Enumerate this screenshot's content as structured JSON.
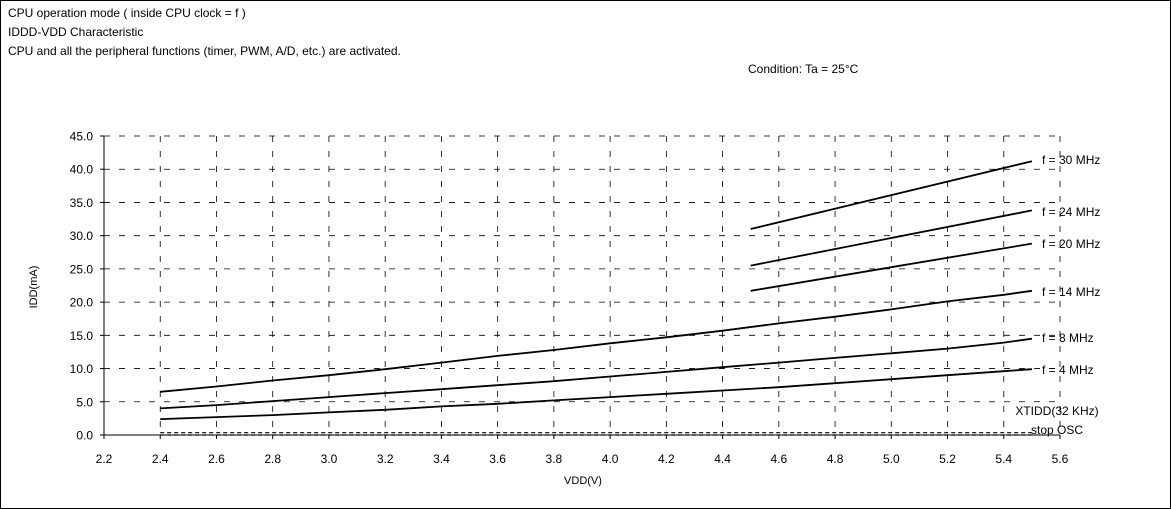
{
  "header": {
    "line1": "CPU operation mode ( inside CPU clock = f )",
    "line2": "IDDD-VDD Characteristic",
    "line3": "CPU and all the peripheral functions (timer, PWM, A/D, etc.) are activated.",
    "condition": "Condition: Ta = 25°C"
  },
  "chart_data": {
    "type": "line",
    "title": "",
    "xlabel": "VDD(V)",
    "ylabel": "IDD(mA)",
    "xlim": [
      2.2,
      5.6
    ],
    "ylim": [
      0,
      45
    ],
    "xticks": [
      "2.2",
      "2.4",
      "2.6",
      "2.8",
      "3.0",
      "3.2",
      "3.4",
      "3.6",
      "3.8",
      "4.0",
      "4.2",
      "4.4",
      "4.6",
      "4.8",
      "5.0",
      "5.2",
      "5.4",
      "5.6"
    ],
    "yticks": [
      "0.0",
      "5.0",
      "10.0",
      "15.0",
      "20.0",
      "25.0",
      "30.0",
      "35.0",
      "40.0",
      "45.0"
    ],
    "grid": true,
    "legend": "inline-right",
    "series": [
      {
        "name": "f = 30 MHz",
        "x": [
          4.5,
          5.5
        ],
        "y": [
          31.0,
          41.2
        ]
      },
      {
        "name": "f = 24 MHz",
        "x": [
          4.5,
          5.5
        ],
        "y": [
          25.5,
          33.8
        ]
      },
      {
        "name": "f = 20 MHz",
        "x": [
          4.5,
          5.5
        ],
        "y": [
          21.7,
          28.8
        ]
      },
      {
        "name": "f = 14 MHz",
        "x": [
          2.4,
          2.6,
          2.8,
          3.0,
          3.2,
          3.4,
          3.6,
          3.8,
          4.0,
          4.2,
          4.4,
          4.6,
          4.8,
          5.0,
          5.2,
          5.4,
          5.5
        ],
        "y": [
          6.5,
          7.3,
          8.2,
          9.0,
          9.9,
          10.9,
          11.9,
          12.8,
          13.8,
          14.7,
          15.7,
          16.8,
          17.8,
          18.9,
          20.1,
          21.1,
          21.7
        ]
      },
      {
        "name": "f = 8 MHz",
        "x": [
          2.4,
          2.6,
          2.8,
          3.0,
          3.2,
          3.4,
          3.6,
          3.8,
          4.0,
          4.2,
          4.4,
          4.6,
          4.8,
          5.0,
          5.2,
          5.4,
          5.5
        ],
        "y": [
          4.0,
          4.5,
          5.1,
          5.7,
          6.3,
          6.9,
          7.5,
          8.1,
          8.8,
          9.5,
          10.2,
          10.9,
          11.6,
          12.3,
          13.0,
          13.9,
          14.5
        ]
      },
      {
        "name": "f = 4 MHz",
        "x": [
          2.4,
          2.6,
          2.8,
          3.0,
          3.2,
          3.4,
          3.6,
          3.8,
          4.0,
          4.2,
          4.4,
          4.6,
          4.8,
          5.0,
          5.2,
          5.4,
          5.5
        ],
        "y": [
          2.4,
          2.7,
          3.0,
          3.4,
          3.8,
          4.3,
          4.7,
          5.2,
          5.7,
          6.2,
          6.7,
          7.2,
          7.8,
          8.4,
          9.0,
          9.6,
          9.9
        ]
      },
      {
        "name": "XTIDD(32 KHz)",
        "x": [
          2.4,
          5.5
        ],
        "y": [
          0.05,
          0.05
        ]
      },
      {
        "name": "stop OSC",
        "x": [
          2.4,
          5.5
        ],
        "y": [
          0.0,
          0.0
        ]
      }
    ]
  }
}
